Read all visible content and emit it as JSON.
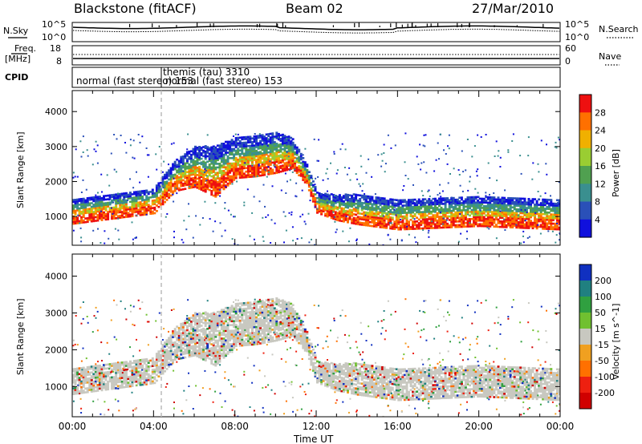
{
  "header": {
    "station": "Blackstone (fitACF)",
    "beam": "Beam 02",
    "date": "27/Mar/2010"
  },
  "sky_panel": {
    "left_label": "N.Sky",
    "right_label": "N.Search",
    "tick_top": "10^5",
    "tick_bottom": "10^0"
  },
  "freq_panel": {
    "left_label_line1": "Freq.",
    "left_label_line2": "[MHz]",
    "right_label": "Nave",
    "left_tick_top": "18",
    "left_tick_bottom": "8",
    "right_tick_top": "60",
    "right_tick_bottom": "0"
  },
  "cpid_panel": {
    "label": "CPID",
    "entries": [
      {
        "text": "normal (fast stereo) 153",
        "t": 0.0
      },
      {
        "text": "themis (tau) 3310",
        "t": 4.4
      },
      {
        "text": "normal (fast stereo) 153",
        "t": 4.6
      }
    ]
  },
  "chart_data": [
    {
      "type": "heatmap",
      "name": "power",
      "ylabel": "Slant Range [km]",
      "xlabel": "Time UT",
      "xlim": [
        0,
        24
      ],
      "ylim": [
        180,
        4600
      ],
      "x_ticks": [
        "00:00",
        "04:00",
        "08:00",
        "12:00",
        "16:00",
        "20:00",
        "00:00"
      ],
      "y_ticks": [
        1000,
        2000,
        3000,
        4000
      ],
      "colorbar": {
        "label": "Power [dB]",
        "ticks": [
          4,
          8,
          12,
          16,
          20,
          24,
          28
        ],
        "colors": [
          "#1010dd",
          "#2a50b8",
          "#3a8f8f",
          "#50a050",
          "#9acd32",
          "#f0b000",
          "#ff7000",
          "#ee1010"
        ]
      },
      "bands": [
        {
          "t": [
            0,
            4,
            5,
            6,
            7,
            8,
            9,
            10,
            10.8,
            11.5,
            12,
            13,
            14,
            16,
            18,
            20,
            22,
            24
          ],
          "range": [
            1150,
            1450,
            2150,
            2400,
            2250,
            2650,
            2700,
            2800,
            2800,
            2200,
            1400,
            1250,
            1200,
            1050,
            1100,
            1150,
            1100,
            1050
          ],
          "width": [
            250,
            250,
            300,
            400,
            500,
            400,
            400,
            400,
            300,
            200,
            200,
            250,
            300,
            300,
            300,
            300,
            300,
            300
          ]
        }
      ]
    },
    {
      "type": "heatmap",
      "name": "velocity",
      "ylabel": "Slant Range [km]",
      "xlabel": "Time UT",
      "xlim": [
        0,
        24
      ],
      "ylim": [
        180,
        4600
      ],
      "x_ticks": [
        "00:00",
        "04:00",
        "08:00",
        "12:00",
        "16:00",
        "20:00",
        "00:00"
      ],
      "y_ticks": [
        1000,
        2000,
        3000,
        4000
      ],
      "colorbar": {
        "label": "Velocity [m s^-1]",
        "ticks": [
          200,
          100,
          50,
          15,
          -15,
          -50,
          -100,
          -200
        ],
        "colors": [
          "#1030c0",
          "#208080",
          "#30a040",
          "#70c030",
          "#c8c8c0",
          "#f0a020",
          "#ff7000",
          "#ee2010",
          "#d00000"
        ]
      }
    }
  ]
}
